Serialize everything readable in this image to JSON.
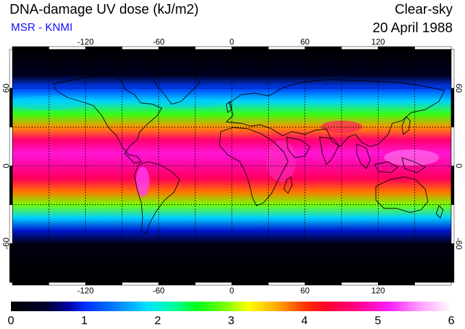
{
  "header": {
    "title": "DNA-damage UV dose (kJ/m2)",
    "subtitle": "MSR - KNMI",
    "condition": "Clear-sky",
    "date": "20 April 1988"
  },
  "map": {
    "projection": "equirectangular",
    "lon_range": [
      -180,
      180
    ],
    "lat_range": [
      -90,
      90
    ],
    "lon_ticks": [
      -120,
      -60,
      0,
      60,
      120
    ],
    "lat_ticks": [
      -60,
      0,
      60
    ],
    "lon_labels": [
      "-120",
      "-60",
      "0",
      "60",
      "120"
    ],
    "lat_labels": [
      "-60",
      "0",
      "60"
    ],
    "grid_spacing_deg": 30,
    "grid_style": "dashed",
    "coastlines": true
  },
  "colorbar": {
    "min": 0,
    "max": 6,
    "tick_labels": [
      "0",
      "1",
      "2",
      "3",
      "4",
      "5",
      "6"
    ],
    "colors": [
      "#000000",
      "#0000a0",
      "#0080ff",
      "#00ffa0",
      "#80ff00",
      "#ffff00",
      "#ff3000",
      "#ff0080",
      "#ffffff"
    ]
  },
  "dose_field": {
    "description_units": "kJ/m2",
    "latitudes": [
      90,
      70,
      60,
      50,
      40,
      30,
      20,
      10,
      0,
      -10,
      -20,
      -30,
      -40,
      -50,
      -60,
      -90
    ],
    "values": [
      0.0,
      0.3,
      1.1,
      1.8,
      2.7,
      3.7,
      4.6,
      5.0,
      4.8,
      4.5,
      3.8,
      2.9,
      1.8,
      0.9,
      0.2,
      0.0
    ]
  }
}
